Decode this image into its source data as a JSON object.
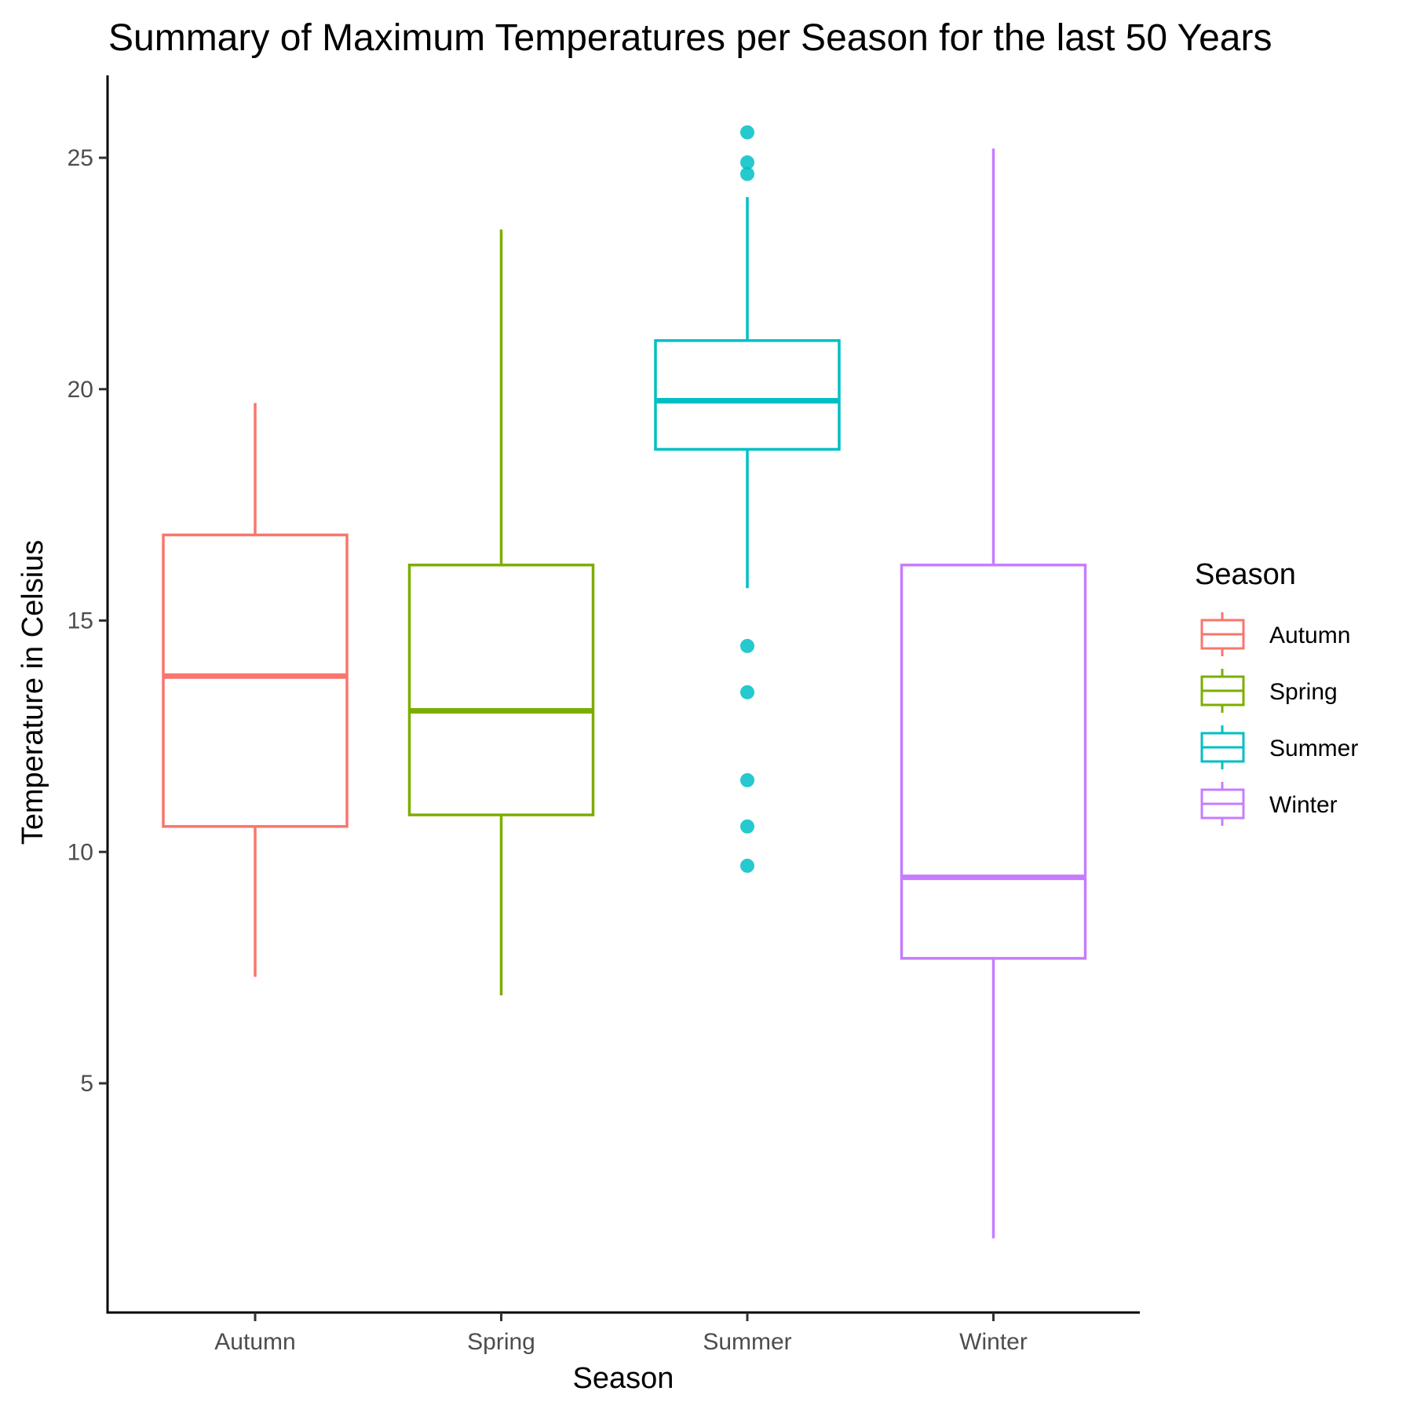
{
  "chart_data": {
    "type": "boxplot",
    "title": "Summary of Maximum Temperatures per Season for the last 50 Years",
    "xlabel": "Season",
    "ylabel": "Temperature in Celsius",
    "ylim": [
      0.5,
      26.7
    ],
    "yticks": [
      5,
      10,
      15,
      20,
      25
    ],
    "grid": false,
    "legend": {
      "title": "Season",
      "placement": "right"
    },
    "categories": [
      "Autumn",
      "Spring",
      "Summer",
      "Winter"
    ],
    "series": [
      {
        "name": "Autumn",
        "color": "#F8766D",
        "whisker_low": 7.3,
        "q1": 10.55,
        "median": 13.8,
        "q3": 16.85,
        "whisker_high": 19.7,
        "outliers": []
      },
      {
        "name": "Spring",
        "color": "#7CAE00",
        "whisker_low": 6.9,
        "q1": 10.8,
        "median": 13.05,
        "q3": 16.2,
        "whisker_high": 23.45,
        "outliers": []
      },
      {
        "name": "Summer",
        "color": "#00BFC4",
        "whisker_low": 15.7,
        "q1": 18.7,
        "median": 19.75,
        "q3": 21.05,
        "whisker_high": 24.15,
        "outliers": [
          25.55,
          24.9,
          24.65,
          14.45,
          13.45,
          11.55,
          10.55,
          9.7
        ]
      },
      {
        "name": "Winter",
        "color": "#C77CFF",
        "whisker_low": 1.65,
        "q1": 7.7,
        "median": 9.45,
        "q3": 16.2,
        "whisker_high": 25.2,
        "outliers": []
      }
    ]
  }
}
